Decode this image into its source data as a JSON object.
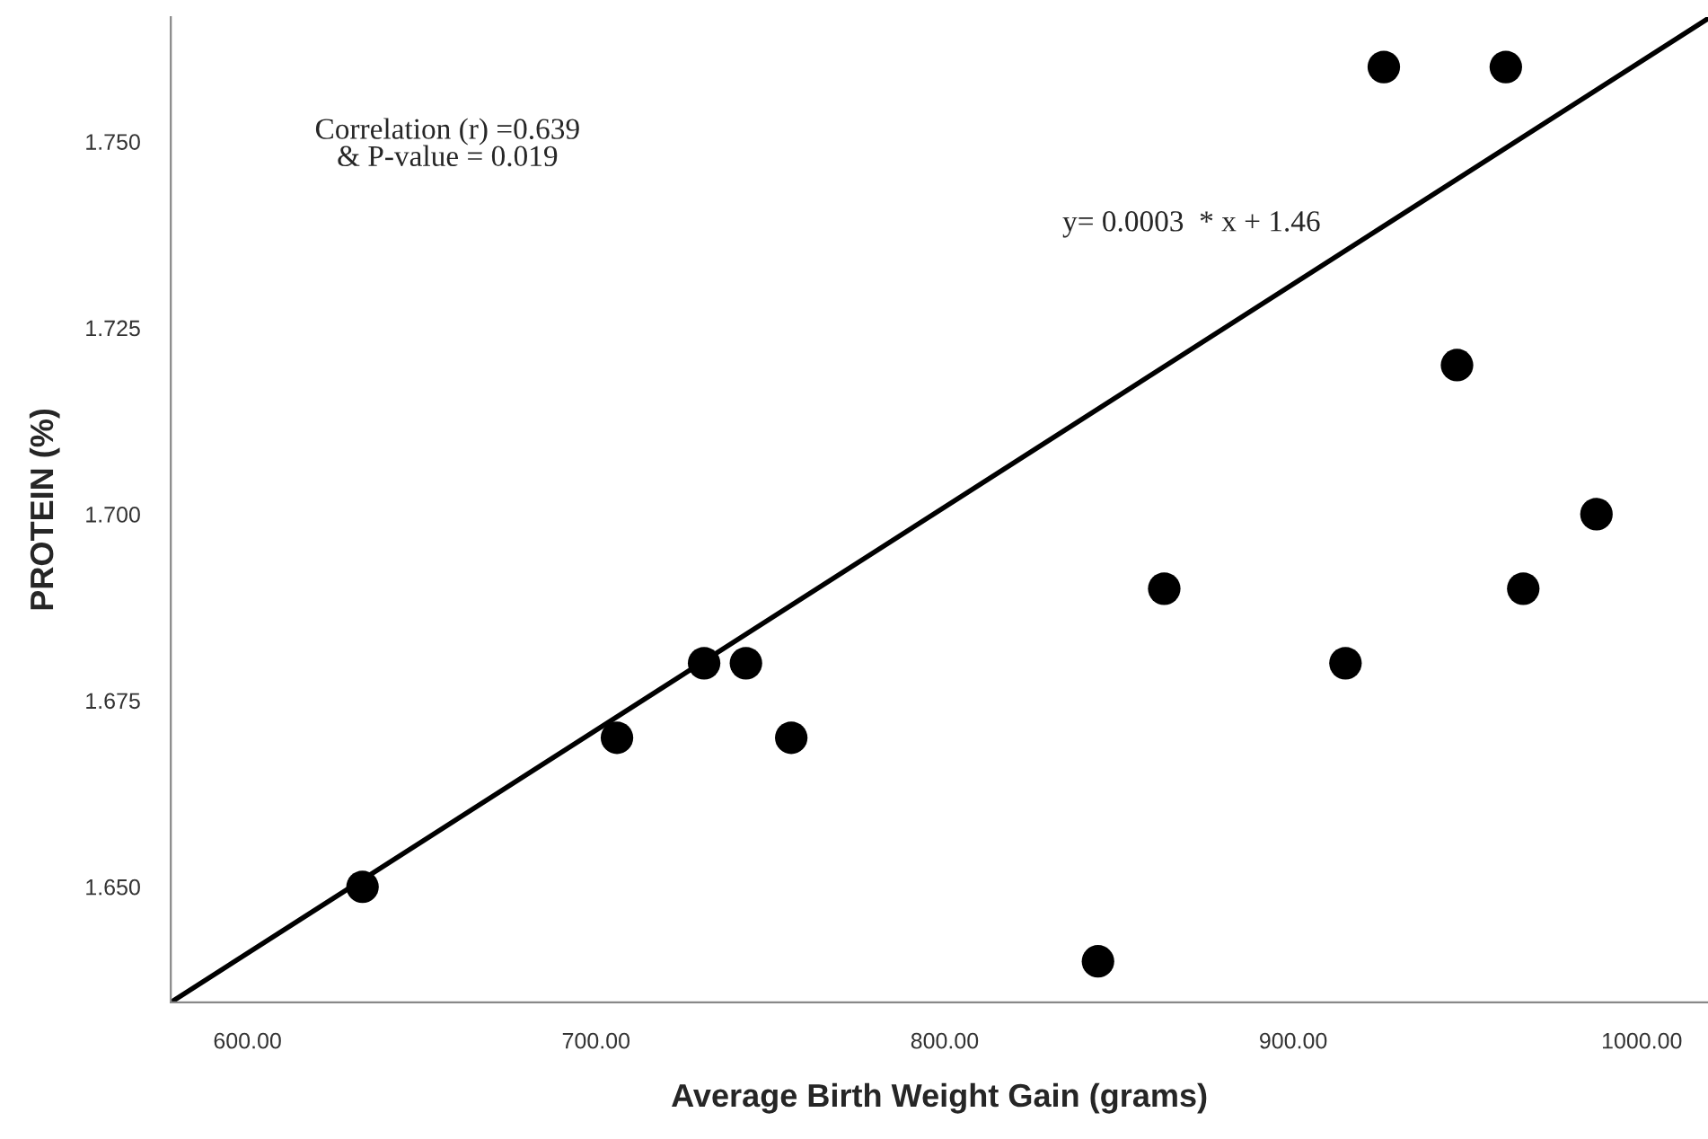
{
  "chart_data": {
    "type": "scatter",
    "xlabel": "Average Birth Weight Gain (grams)",
    "ylabel": "PROTEIN (%)",
    "xlim": [
      578,
      1019
    ],
    "ylim": [
      1.6345,
      1.7667
    ],
    "xticks": [
      {
        "value": 600,
        "label": "600.00"
      },
      {
        "value": 700,
        "label": "700.00"
      },
      {
        "value": 800,
        "label": "800.00"
      },
      {
        "value": 900,
        "label": "900.00"
      },
      {
        "value": 1000,
        "label": "1000.00"
      }
    ],
    "yticks": [
      {
        "value": 1.65,
        "label": "1.650"
      },
      {
        "value": 1.675,
        "label": "1.675"
      },
      {
        "value": 1.7,
        "label": "1.700"
      },
      {
        "value": 1.725,
        "label": "1.725"
      },
      {
        "value": 1.75,
        "label": "1.750"
      }
    ],
    "grid": false,
    "annotations": [
      "Correlation (r) =0.639\n& P-value = 0.019",
      "y= 0.0003  * x + 1.46"
    ],
    "series": [
      {
        "marker": "circle",
        "color": "#000000",
        "x": [
          633,
          706,
          731,
          743,
          756,
          844,
          863,
          915,
          926,
          961,
          947,
          987,
          966
        ],
        "values": [
          1.65,
          1.67,
          1.68,
          1.68,
          1.67,
          1.64,
          1.69,
          1.68,
          1.76,
          1.76,
          1.72,
          1.7,
          1.69
        ]
      },
      {
        "type": "line",
        "color": "#000000",
        "line_style": "solid",
        "x": [
          578,
          1019
        ],
        "values": [
          1.6345,
          1.7665
        ]
      }
    ]
  }
}
